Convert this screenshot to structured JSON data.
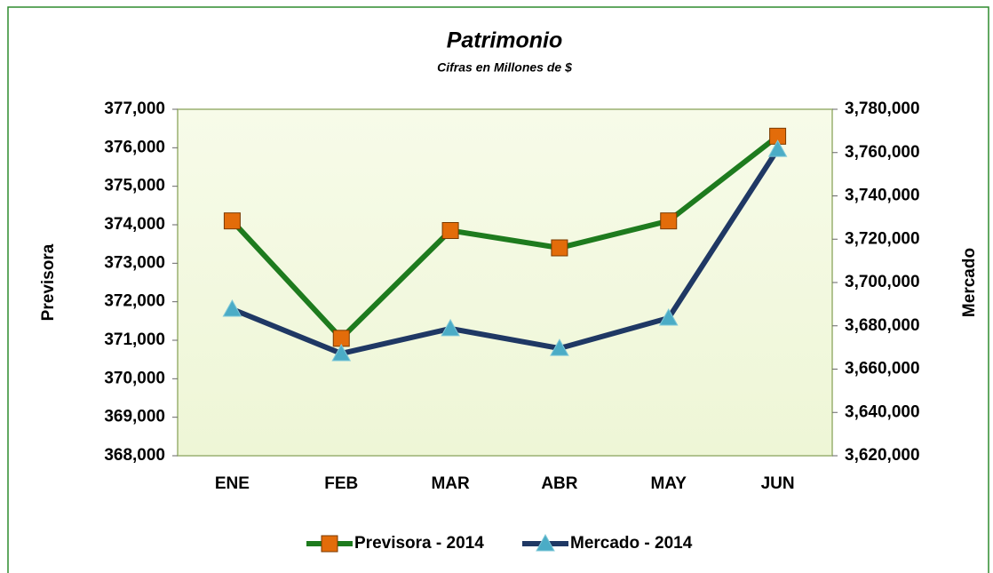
{
  "chart_data": {
    "type": "line",
    "title": "Patrimonio",
    "subtitle": "Cifras en Millones de $",
    "ylabel": "Previsora",
    "y2label": "Mercado",
    "categories": [
      "ENE",
      "FEB",
      "MAR",
      "ABR",
      "MAY",
      "JUN"
    ],
    "series": [
      {
        "name": "Previsora - 2014",
        "color": "#1e7b1e",
        "marker_color": "#e36c0a",
        "values": [
          374100,
          371050,
          373850,
          373400,
          374100,
          376300
        ]
      },
      {
        "name": "Mercado - 2014",
        "color": "#1f3864",
        "marker_color": "#4bacc6",
        "axis": "y2",
        "values": [
          3687700,
          3667200,
          3678700,
          3669600,
          3683600,
          3761500
        ]
      }
    ],
    "ylim": [
      368000,
      377000
    ],
    "yticks": [
      {
        "value": 368000,
        "label": "368,000"
      },
      {
        "value": 369000,
        "label": "369,000"
      },
      {
        "value": 370000,
        "label": "370,000"
      },
      {
        "value": 371000,
        "label": "371,000"
      },
      {
        "value": 372000,
        "label": "372,000"
      },
      {
        "value": 373000,
        "label": "373,000"
      },
      {
        "value": 374000,
        "label": "374,000"
      },
      {
        "value": 375000,
        "label": "375,000"
      },
      {
        "value": 376000,
        "label": "376,000"
      },
      {
        "value": 377000,
        "label": "377,000"
      }
    ],
    "y2lim": [
      3620000,
      3780000
    ],
    "y2ticks": [
      {
        "value": 3620000,
        "label": "3,620,000"
      },
      {
        "value": 3640000,
        "label": "3,640,000"
      },
      {
        "value": 3660000,
        "label": "3,660,000"
      },
      {
        "value": 3680000,
        "label": "3,680,000"
      },
      {
        "value": 3700000,
        "label": "3,700,000"
      },
      {
        "value": 3720000,
        "label": "3,720,000"
      },
      {
        "value": 3740000,
        "label": "3,740,000"
      },
      {
        "value": 3760000,
        "label": "3,760,000"
      },
      {
        "value": 3780000,
        "label": "3,780,000"
      }
    ],
    "legend": "bottom"
  }
}
